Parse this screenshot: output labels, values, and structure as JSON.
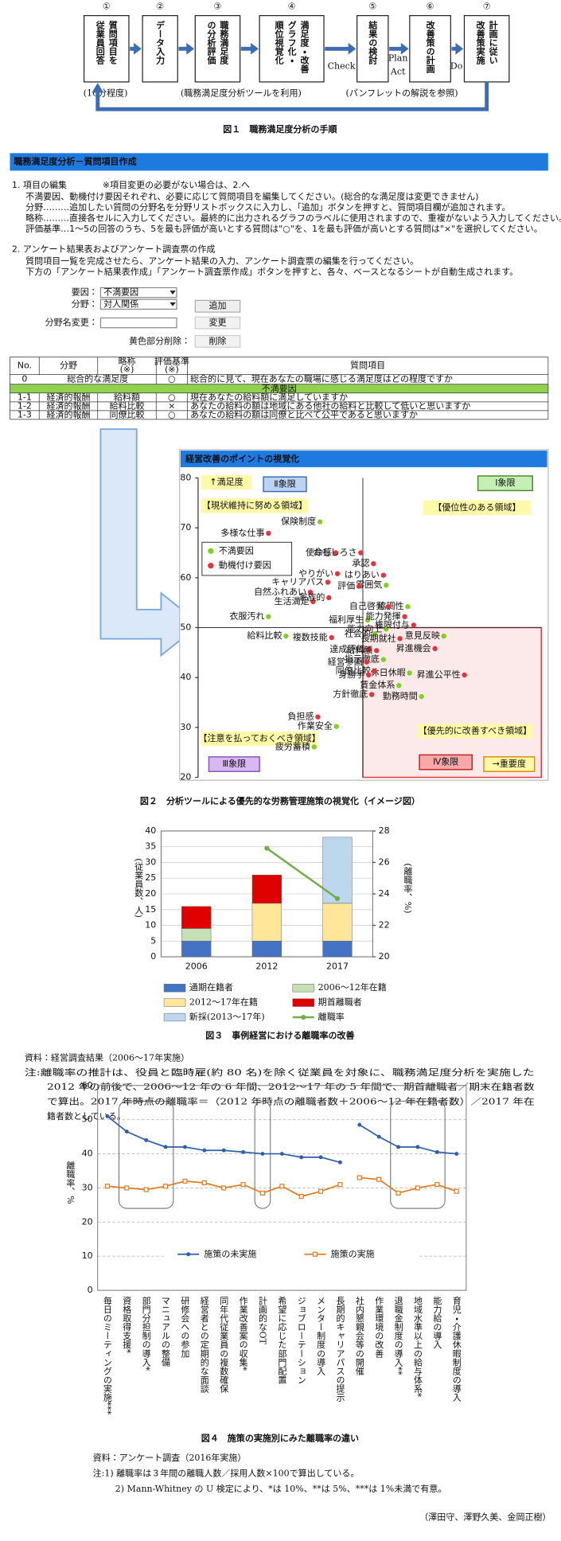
{
  "figure1": {
    "steps": [
      {
        "number": "①",
        "lines": [
          "質問項目を",
          "従業員回答"
        ]
      },
      {
        "number": "②",
        "lines": [
          "データ入力"
        ]
      },
      {
        "number": "③",
        "lines": [
          "職務満足度",
          "の分析評価"
        ]
      },
      {
        "number": "④",
        "lines": [
          "満足度・改善",
          "グラフ化・",
          "順位視覚化"
        ]
      },
      {
        "number": "⑤",
        "lines": [
          "結果の検討"
        ]
      },
      {
        "number": "⑥",
        "lines": [
          "改善策の計画"
        ]
      },
      {
        "number": "⑦",
        "lines": [
          "計画に従い",
          "改善策実施"
        ]
      }
    ],
    "cycle_labels": {
      "check": "Check",
      "plan": "Plan",
      "act": "Act",
      "do": "Do"
    },
    "notes": [
      "(10分程度)",
      "(職務満足度分析ツールを利用)",
      "(パンフレットの解説を参照)"
    ],
    "caption": "図１　職務満足度分析の手順"
  },
  "screenshot": {
    "header": "職務満足度分析－質問項目作成",
    "section1": {
      "title": "1. 項目の編集",
      "note": "※項目変更の必要がない場合は、2.へ",
      "lines": [
        "不満要因、動機付け要因それぞれ、必要に応じて質問項目を編集してください。(総合的な満足度は変更できません)",
        "分野………追加したい質問の分野名を分野リストボックスに入力し、「追加」ボタンを押すと、質問項目欄が追加されます。",
        "略称………直接各セルに入力してください。最終的に出力されるグラフのラベルに使用されますので、重複がないよう入力してください。",
        "評価基準…1～5の回答のうち、5を最も評価が高いとする質問は\"○\"を、1を最も評価が高いとする質問は\"×\"を選択してください。"
      ]
    },
    "section2": {
      "title": "2. アンケート結果表およびアンケート調査票の作成",
      "lines": [
        "質問項目一覧を完成させたら、アンケート結果の入力、アンケート調査票の編集を行ってください。",
        "下方の「アンケート結果表作成」「アンケート調査票作成」ボタンを押すと、各々、ベースとなるシートが自動生成されます。"
      ]
    },
    "form": {
      "factor_label": "要因：",
      "factor_value": "不満要因",
      "field_label": "分野：",
      "field_value": "対人関係",
      "add_button": "追加",
      "rename_label": "分野名変更：",
      "rename_button": "変更",
      "delete_label": "黄色部分削除：",
      "delete_button": "削除"
    },
    "table": {
      "columns": [
        {
          "label": "No."
        },
        {
          "label": "分野"
        },
        {
          "label": "略称",
          "note": "(※)"
        },
        {
          "label": "評価基準",
          "note": "(※)"
        },
        {
          "label": "質問項目"
        }
      ],
      "total_row": [
        "0",
        "総合的な満足度",
        "○",
        "総合的に見て、現在あなたの職場に感じる満足度はどの程度ですか"
      ],
      "group_label": "不満要因",
      "rows": [
        [
          "1-1",
          "経済的報酬",
          "給料額",
          "○",
          "現在あなたの給料額に満足していますか"
        ],
        [
          "1-2",
          "経済的報酬",
          "給料比較",
          "×",
          "あなたの給料の額は地域にある他社の給料と比較して低いと思いますか"
        ],
        [
          "1-3",
          "経済的報酬",
          "同僚比較",
          "○",
          "あなたの給料の額は同僚と比べて公平であると思いますか"
        ]
      ]
    }
  },
  "figure2": {
    "chart_data": {
      "type": "scatter",
      "title": "経営改善のポイントの視覚化",
      "ylim": [
        20,
        80
      ],
      "yticks": [
        20,
        30,
        40,
        50,
        60,
        70,
        80
      ],
      "xlim": [
        0,
        100
      ],
      "midlines": {
        "x": 48,
        "y": 50
      },
      "legend": "upper left",
      "series": [
        {
          "name": "不満要因",
          "color": "#7ed321",
          "labels": [
            "保険制度",
            "衣服汚れ",
            "給料比較",
            "雰囲気",
            "協調性",
            "福利厚生",
            "能力向上",
            "社会的",
            "意見反映",
            "指示徹底",
            "休日休暇",
            "賃金体系",
            "勤務時間",
            "作業安全",
            "疲労蓄積"
          ],
          "x": [
            35.5,
            20.5,
            25.6,
            54.8,
            61.1,
            49.4,
            54.8,
            51.4,
            71.6,
            54,
            61.6,
            58.5,
            65.1,
            40.3,
            33.8
          ],
          "values": [
            71.2,
            52.2,
            48.3,
            58.5,
            54.2,
            51.5,
            49.7,
            48.7,
            48.3,
            43.6,
            40.9,
            38.4,
            36.2,
            30.2,
            26.1
          ]
        },
        {
          "name": "動機付け要因",
          "color": "#e8323c",
          "labels": [
            "多様な仕事",
            "使命感",
            "おもしろさ",
            "承認",
            "やりがい",
            "はりあい",
            "評価",
            "キャリアパス",
            "自然ふれあい",
            "生活満足",
            "家族的",
            "自己啓発",
            "能力発揮",
            "権限付与",
            "長期就社",
            "複数技能",
            "昇進機会",
            "達成評価",
            "給料額",
            "経営参画",
            "同僚比較",
            "身勝手",
            "昇進公平性",
            "方針徹底",
            "負担感"
          ],
          "x": [
            20.5,
            40.1,
            47.4,
            51.1,
            40.6,
            54,
            46.9,
            37.8,
            32.7,
            33.5,
            38.1,
            55.4,
            60.2,
            62.8,
            58.8,
            38.9,
            69,
            49.7,
            52,
            49.1,
            51.4,
            49.7,
            77.6,
            50.6,
            34.9
          ],
          "values": [
            68.9,
            65,
            65,
            62.8,
            60.8,
            60.5,
            58.3,
            59.1,
            57.1,
            55.2,
            56,
            54.2,
            52.2,
            50.5,
            47.8,
            48,
            45.8,
            45.6,
            45.4,
            43.1,
            41.3,
            40.5,
            40.5,
            36.6,
            32.1
          ]
        }
      ],
      "annotations": {
        "y_direction": "↑満足度",
        "q2": "Ⅱ象限",
        "q1": "Ⅰ象限",
        "q2_area": "【現状維持に努める領域】",
        "q1_area": "【優位性のある領域】",
        "q3_area": "【注意を払っておくべき領域】",
        "q4_area": "【優先的に改善すべき領域】",
        "q3": "Ⅲ象限",
        "q4": "Ⅳ象限",
        "x_direction": "→重要度"
      }
    },
    "caption": "図２　分析ツールによる優先的な労務管理施策の視覚化（イメージ図）"
  },
  "figure3": {
    "chart_data": {
      "type": "stacked_bar",
      "categories": [
        "2006",
        "2012",
        "2017"
      ],
      "ylim": [
        0,
        40
      ],
      "yticks": [
        0,
        5,
        10,
        15,
        20,
        25,
        30,
        35,
        40
      ],
      "y2lim": [
        20,
        28
      ],
      "y2ticks": [
        20,
        22,
        24,
        26,
        28
      ],
      "ylabel": "(従業員数、人)",
      "y2label": "(離職率、%)",
      "grid": true,
      "series": [
        {
          "name": "通期在籍者",
          "color": "#4472c4",
          "values": [
            5,
            5,
            5
          ]
        },
        {
          "name": "2006～12年在籍",
          "color": "#c5e0b4",
          "values": [
            4,
            null,
            null
          ]
        },
        {
          "name": "2012～17年在籍",
          "color": "#ffe699",
          "values": [
            null,
            12,
            12
          ]
        },
        {
          "name": "期首離職者",
          "color": "#e00000",
          "values": [
            7,
            9,
            null
          ]
        },
        {
          "name": "新採(2013～17年)",
          "color": "#bdd7ee",
          "values": [
            null,
            null,
            21
          ]
        },
        {
          "name": "離職率",
          "color": "#70ad47",
          "axis": "y2",
          "type": "line",
          "values": [
            null,
            26.9,
            23.7
          ]
        }
      ]
    },
    "caption": "図３　事例経営における離職率の改善",
    "source": "資料：経営調査結果（2006～17年実施）",
    "note_lines": [
      "注:離職率の推計は、役員と臨時雇(約 80 名)を除く従業員を対象に、職務満足度分析を実施した",
      "2012 年の前後で、2006～12 年の 6 年間、2012～17 年の 5 年間で、期首離職者／期末在籍者数",
      "で算出。2017 年時点の離職率＝（2012 年時点の離職者数＋2006～12 年在籍者数）／2017 年在",
      "籍者数としている。"
    ]
  },
  "figure4": {
    "chart_data": {
      "type": "line",
      "categories": [
        "毎日のミーティングの実施***",
        "資格取得支援*",
        "部門分担制の導入*",
        "マニュアルの整備",
        "研修会への参加",
        "経営者との定期的な面談",
        "同年代従業員の複数確保",
        "作業改善案の収集*",
        "計画的なOT",
        "希望に応じた部門配置",
        "ジョブローテーション",
        "メンター制度の導入",
        "長期的キャリアパスの提示",
        "社内懇親会等の開催",
        "作業環境の改善",
        "退職金制度の導入**",
        "地域水準以上の給与体系*",
        "能力給の導入",
        "育児・介護休暇制度の導入"
      ],
      "line_break_before": 13,
      "ylim": [
        0,
        60
      ],
      "yticks": [
        0,
        10,
        20,
        30,
        40,
        50,
        60
      ],
      "ylabel": "離職率、%",
      "grid": true,
      "legend": "lower center",
      "series": [
        {
          "name": "施策の未実施",
          "color": "#2e5fa8",
          "values": [
            51,
            46.5,
            44,
            42,
            42,
            41,
            41,
            40.5,
            40,
            40,
            39,
            39,
            37.5,
            48.5,
            45,
            42,
            42,
            40.5,
            40
          ]
        },
        {
          "name": "施策の実施",
          "color": "#e07b20",
          "values": [
            30.5,
            30,
            29.5,
            30.5,
            32,
            31.5,
            30,
            31,
            28.5,
            30.5,
            27.5,
            29,
            31,
            33,
            32.5,
            28.5,
            30,
            31,
            29
          ]
        }
      ]
    },
    "caption": "図４　施策の実施別にみた離職率の違い",
    "source": "資料：アンケート調査（2016年実施）",
    "notes": [
      "注:1) 離職率は３年間の離職人数／採用人数×100で算出している。",
      "2) Mann-Whitney の U 検定により、*は 10%、**は 5%、***は 1%未満で有意。"
    ],
    "authors": "（澤田守、澤野久美、金岡正樹）"
  }
}
